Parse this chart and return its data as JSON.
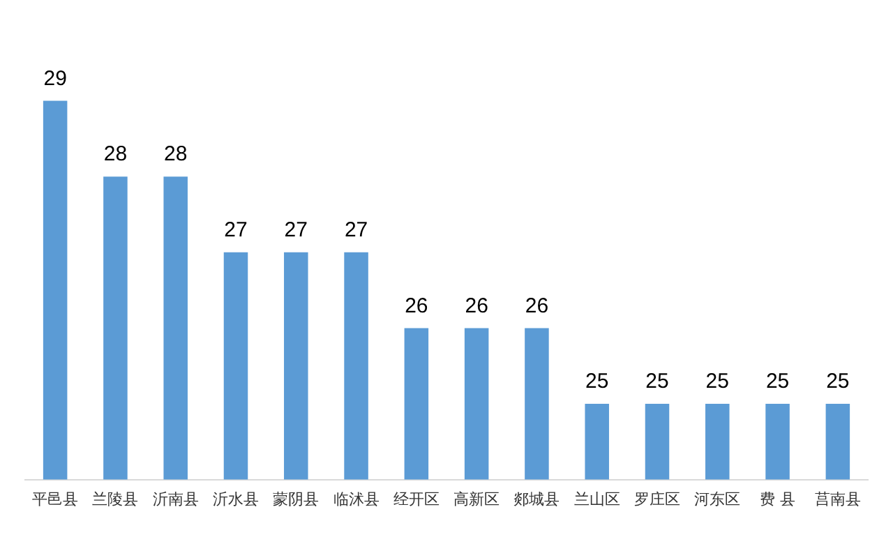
{
  "chart_data": {
    "type": "bar",
    "categories": [
      "平邑县",
      "兰陵县",
      "沂南县",
      "沂水县",
      "蒙阴县",
      "临沭县",
      "经开区",
      "高新区",
      "郯城县",
      "兰山区",
      "罗庄区",
      "河东区",
      "费 县",
      "莒南县"
    ],
    "values": [
      29,
      28,
      28,
      27,
      27,
      27,
      26,
      26,
      26,
      25,
      25,
      25,
      25,
      25
    ],
    "color": "#5b9bd5",
    "data_labels": true,
    "grid": false,
    "legend": false,
    "tick_labels": "x"
  }
}
